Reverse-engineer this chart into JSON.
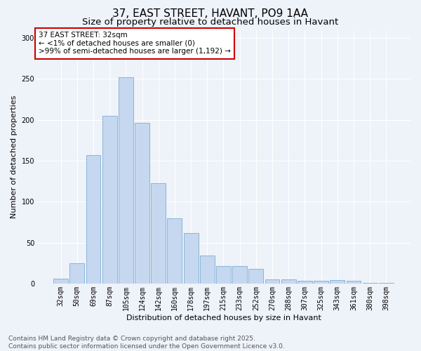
{
  "title": "37, EAST STREET, HAVANT, PO9 1AA",
  "subtitle": "Size of property relative to detached houses in Havant",
  "xlabel": "Distribution of detached houses by size in Havant",
  "ylabel": "Number of detached properties",
  "categories": [
    "32sqm",
    "50sqm",
    "69sqm",
    "87sqm",
    "105sqm",
    "124sqm",
    "142sqm",
    "160sqm",
    "178sqm",
    "197sqm",
    "215sqm",
    "233sqm",
    "252sqm",
    "270sqm",
    "288sqm",
    "307sqm",
    "325sqm",
    "343sqm",
    "361sqm",
    "380sqm",
    "398sqm"
  ],
  "values": [
    6,
    25,
    157,
    205,
    252,
    196,
    123,
    80,
    62,
    34,
    21,
    21,
    18,
    5,
    5,
    3,
    3,
    4,
    3,
    1,
    1
  ],
  "bar_color": "#c5d8ef",
  "bar_edge_color": "#7eadd4",
  "background_color": "#eef2f9",
  "annotation_box_color": "#ffffff",
  "annotation_border_color": "#cc0000",
  "annotation_text_line1": "37 EAST STREET: 32sqm",
  "annotation_text_line2": "← <1% of detached houses are smaller (0)",
  "annotation_text_line3": ">99% of semi-detached houses are larger (1,192) →",
  "ylim": [
    0,
    310
  ],
  "yticks": [
    0,
    50,
    100,
    150,
    200,
    250,
    300
  ],
  "footer_line1": "Contains HM Land Registry data © Crown copyright and database right 2025.",
  "footer_line2": "Contains public sector information licensed under the Open Government Licence v3.0.",
  "title_fontsize": 11,
  "subtitle_fontsize": 9.5,
  "axis_label_fontsize": 8,
  "tick_fontsize": 7,
  "annotation_fontsize": 7.5,
  "footer_fontsize": 6.5,
  "ylabel_fontsize": 8
}
